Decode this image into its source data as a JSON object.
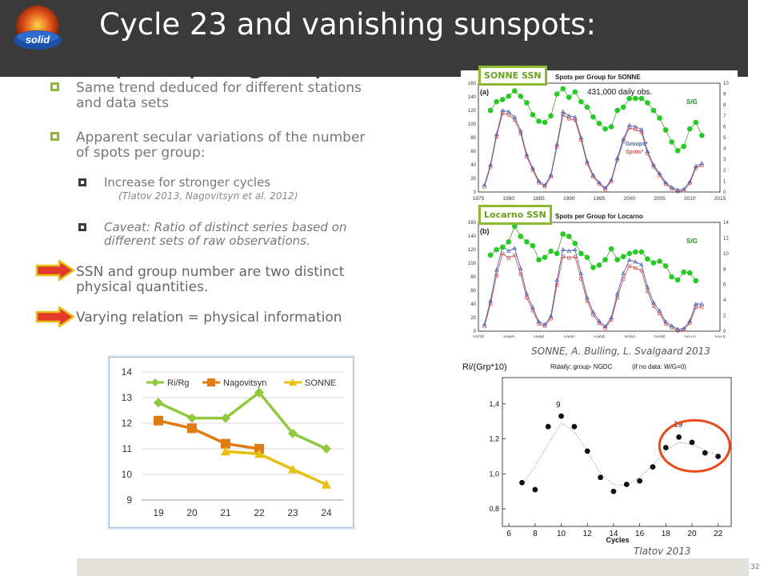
{
  "header": {
    "title_line1": "Cycle 23 and vanishing sunspots:",
    "title_line2": "spots per group",
    "logo_text": "solid"
  },
  "bullets": [
    {
      "text1": "Same trend deduced for different stations",
      "text2": "and data sets"
    },
    {
      "text1": "Apparent secular variations of the number",
      "text2": "of spots per group:"
    }
  ],
  "subbullets": [
    {
      "text1": "Increase for stronger cycles",
      "cite": "(Tlatov 2013, Nagovitsyn et al. 2012)"
    },
    {
      "text1": "Caveat: Ratio of distinct series based on",
      "text2": "different sets of raw observations."
    }
  ],
  "arrow_items": [
    {
      "text1": "SSN and group number are two distinct",
      "text2": "physical quantities."
    },
    {
      "text1": "Varying relation = physical information"
    }
  ],
  "sonne_label": "SONNE SSN",
  "locarno_label": "Locarno SSN",
  "sonne_plot": {
    "title": "Spots per Group for SONNE",
    "panel": "(a)",
    "obs": "431,000 daily obs.",
    "sg": "S/G",
    "groups": "Groups*",
    "spots": "Spots*",
    "xticks": [
      "1975",
      "1980",
      "1985",
      "1990",
      "1995",
      "2000",
      "2005",
      "2010",
      "2015"
    ],
    "yticks_left": [
      "0",
      "20",
      "40",
      "60",
      "80",
      "100",
      "120",
      "140",
      "160"
    ],
    "yticks_right": [
      "0",
      "1",
      "2",
      "3",
      "4",
      "5",
      "6",
      "7",
      "8",
      "9",
      "10"
    ]
  },
  "locarno_plot": {
    "title": "Spots per Group for Locarno",
    "panel": "(b)",
    "sg": "S/G",
    "xticks": [
      "1975",
      "1980",
      "1985",
      "1990",
      "1995",
      "2000",
      "2005",
      "2010",
      "2015"
    ],
    "yticks_left": [
      "0",
      "20",
      "40",
      "60",
      "80",
      "100",
      "120",
      "140",
      "160"
    ],
    "yticks_right": [
      "0",
      "2",
      "4",
      "6",
      "8",
      "10",
      "12",
      "14"
    ]
  },
  "tlatov_plot": {
    "ylabel": "Ri/(Grp*10)",
    "title": "Ridaily; group- NGDC",
    "note": "(if no data: W/G=0)",
    "xlabel": "Cycles",
    "xticks": [
      "6",
      "8",
      "10",
      "12",
      "14",
      "16",
      "18",
      "20",
      "22"
    ],
    "yticks": [
      "0,8",
      "1,0",
      "1,2",
      "1,4"
    ],
    "ann_9": "9",
    "ann_19": "19",
    "points": [
      [
        7,
        0.95
      ],
      [
        8,
        0.91
      ],
      [
        9,
        1.27
      ],
      [
        10,
        1.33
      ],
      [
        11,
        1.27
      ],
      [
        12,
        1.13
      ],
      [
        13,
        0.98
      ],
      [
        14,
        0.9
      ],
      [
        15,
        0.94
      ],
      [
        16,
        0.96
      ],
      [
        17,
        1.04
      ],
      [
        18,
        1.15
      ],
      [
        19,
        1.21
      ],
      [
        20,
        1.18
      ],
      [
        21,
        1.12
      ],
      [
        22,
        1.1
      ]
    ]
  },
  "captions": {
    "sonne_credit": "SONNE, A. Bulling, L. Svalgaard 2013",
    "tlatov_credit": "Tlatov 2013"
  },
  "chart_data": {
    "type": "line",
    "categories": [
      "19",
      "20",
      "21",
      "22",
      "23",
      "24"
    ],
    "series": [
      {
        "name": "Ri/Rg",
        "color": "#92c83e",
        "values": [
          12.8,
          12.2,
          12.2,
          13.2,
          11.6,
          11.0
        ]
      },
      {
        "name": "Nagovitsyn",
        "color": "#e07a12",
        "values": [
          12.1,
          11.8,
          11.2,
          11.0,
          null,
          null
        ]
      },
      {
        "name": "SONNE",
        "color": "#e8c012",
        "values": [
          null,
          null,
          10.9,
          10.8,
          10.2,
          9.6
        ]
      }
    ],
    "ylim": [
      9,
      14
    ],
    "yticks": [
      "9",
      "10",
      "11",
      "12",
      "13",
      "14"
    ],
    "legend": "top",
    "grid": true
  },
  "page_number": "32"
}
